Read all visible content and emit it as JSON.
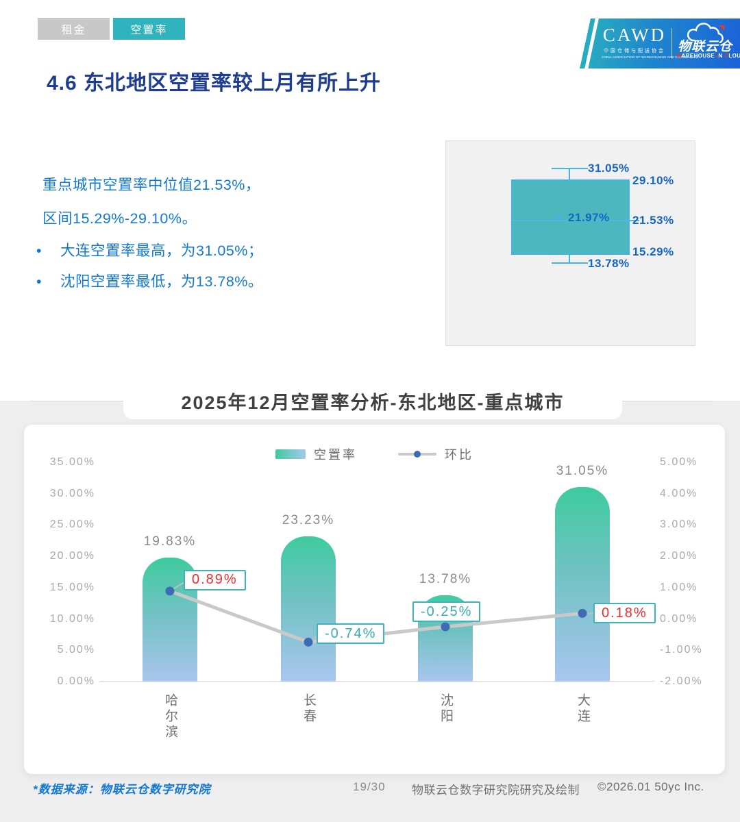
{
  "tabs": [
    {
      "label": "租金",
      "active": false
    },
    {
      "label": "空置率",
      "active": true
    }
  ],
  "logo": {
    "cawd": "CAWD",
    "cawd_cn": "中国仓储与配送协会",
    "cawd_en": "CHINA ASSOCIATION OF WAREHOUSING AND DISTRIBUTION",
    "wic_cn": "物联云仓",
    "wic_en": "WAREHOUSE IN CLOUD"
  },
  "page_title": "4.6 东北地区空置率较上月有所上升",
  "summary": {
    "lines": [
      "重点城市空置率中位值21.53%，",
      "区间15.29%-29.10%。"
    ],
    "bullets": [
      "大连空置率最高，为31.05%；",
      "沈阳空置率最低，为13.78%。"
    ],
    "bullet_glyph": "•"
  },
  "chart_title": "2025年12月空置率分析-东北地区-重点城市",
  "footer": {
    "source": "*数据来源：物联云仓数字研究院",
    "page_number": "19/30",
    "credit": "物联云仓数字研究院研究及绘制",
    "copyright": "©2026.01 50yc Inc."
  },
  "colors": {
    "accent_teal": "#2fb3bc",
    "inactive_tab_gray": "#c8c8c8",
    "title_navy": "#1f3d8f",
    "body_blue": "#1478d2",
    "boxplot_label_blue": "#1565c3",
    "boxplot_fill": "#4cb8bd",
    "boxplot_border": "#46b3e6",
    "bar_gradient_top": "#3ecb9e",
    "bar_gradient_bottom": "#a9c6ee",
    "line_gray": "#c9c9c9",
    "dot_blue": "#3d6cb5",
    "positive_red": "#ed2b2f",
    "negative_teal": "#36abb5"
  },
  "chart_data": [
    {
      "type": "boxplot",
      "context": "重点城市空置率分布",
      "max": 31.05,
      "q3": 29.1,
      "mean": 21.97,
      "median": 21.53,
      "q1": 15.29,
      "min": 13.78,
      "labels": {
        "max": "31.05%",
        "q3": "29.10%",
        "mean": "21.97%",
        "median": "21.53%",
        "q1": "15.29%",
        "min": "13.78%"
      },
      "mean_marker": "×"
    },
    {
      "type": "bar+line",
      "title": "2025年12月空置率分析-东北地区-重点城市",
      "categories": [
        "哈尔滨",
        "长春",
        "沈阳",
        "大连"
      ],
      "series": [
        {
          "name": "空置率",
          "type": "bar",
          "axis": "left",
          "values": [
            19.83,
            23.23,
            13.78,
            31.05
          ],
          "labels": [
            "19.83%",
            "23.23%",
            "13.78%",
            "31.05%"
          ]
        },
        {
          "name": "环比",
          "type": "line",
          "axis": "right",
          "values": [
            0.89,
            -0.74,
            -0.25,
            0.18
          ],
          "labels": [
            "0.89%",
            "-0.74%",
            "-0.25%",
            "0.18%"
          ]
        }
      ],
      "left_axis": {
        "min": 0,
        "max": 35,
        "ticks": [
          "35.00%",
          "30.00%",
          "25.00%",
          "20.00%",
          "15.00%",
          "10.00%",
          "5.00%",
          "0.00%"
        ]
      },
      "right_axis": {
        "min": -2,
        "max": 5,
        "ticks": [
          "5.00%",
          "4.00%",
          "3.00%",
          "2.00%",
          "1.00%",
          "0.00%",
          "-1.00%",
          "-2.00%"
        ]
      },
      "legend_position": "top",
      "grid": false
    }
  ]
}
